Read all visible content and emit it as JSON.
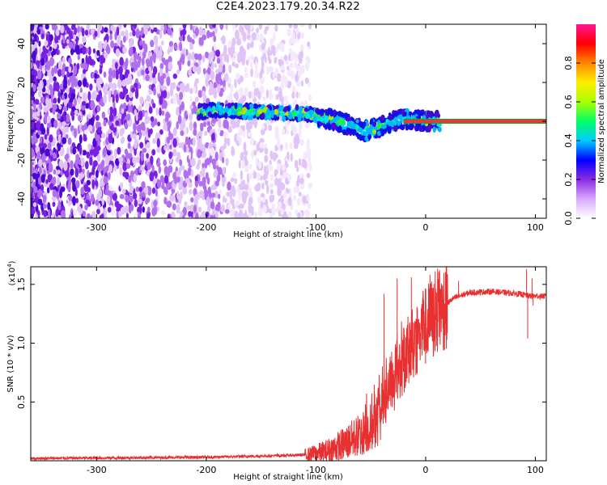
{
  "title": "C2E4.2023.179.20.34.R22",
  "colors": {
    "snr_line": "#e83030",
    "frame": "#000000",
    "reference_line_fill": "#e03c3c",
    "reference_line_edge": "#18a018",
    "scatter_palette": [
      "#f4e8fc",
      "#e0c4f8",
      "#b070ee",
      "#7a20e0",
      "#4a08d0",
      "#1010e8",
      "#00b8ff",
      "#00e8d8",
      "#20f040",
      "#b0e010"
    ]
  },
  "chart_data": [
    {
      "type": "heatmap",
      "xlabel": "Height of straight line (km)",
      "ylabel": "Frequency (Hz)",
      "xlim": [
        -360,
        110
      ],
      "ylim": [
        -50,
        50
      ],
      "x_ticks": [
        -300,
        -200,
        -100,
        0,
        100
      ],
      "y_ticks": [
        -40,
        -20,
        0,
        20,
        40
      ],
      "colorbar": {
        "label": "Normalized spectral amplitude",
        "range": [
          0.0,
          1.0
        ],
        "ticks": [
          "0.0",
          "0.2",
          "0.4",
          "0.6",
          "0.8"
        ],
        "tick_values": [
          0.0,
          0.2,
          0.4,
          0.6,
          0.8
        ],
        "colors": [
          "#ffffff",
          "#d8a8ff",
          "#8a2be2",
          "#0000ff",
          "#00ccff",
          "#00ff66",
          "#aaff00",
          "#ffee00",
          "#ff8800",
          "#ff0000",
          "#ff1493"
        ]
      },
      "signal_track": [
        [
          -205,
          5
        ],
        [
          -190,
          6
        ],
        [
          -170,
          5
        ],
        [
          -150,
          5
        ],
        [
          -130,
          4
        ],
        [
          -110,
          4
        ],
        [
          -95,
          2
        ],
        [
          -80,
          0
        ],
        [
          -65,
          -3
        ],
        [
          -55,
          -5
        ],
        [
          -45,
          -4
        ],
        [
          -35,
          -1
        ],
        [
          -25,
          1
        ],
        [
          -15,
          1
        ],
        [
          0,
          0
        ],
        [
          20,
          0
        ],
        [
          60,
          0
        ],
        [
          110,
          0
        ]
      ],
      "reference_line_y": 0,
      "reference_line_from_x": -20
    },
    {
      "type": "line",
      "xlabel": "Height of straight line (km)",
      "ylabel": "SNR (10 * v/v)",
      "multiplier": "(x10",
      "multiplier_exp": "4",
      "multiplier_close": ")",
      "xlim": [
        -360,
        110
      ],
      "ylim": [
        0,
        1.65
      ],
      "x_ticks": [
        -300,
        -200,
        -100,
        0,
        100
      ],
      "y_ticks": [
        0.5,
        1.0,
        1.5
      ],
      "y_tick_labels": [
        "0.5",
        "1.0",
        "1.5"
      ],
      "envelope": [
        [
          -360,
          0.02
        ],
        [
          -200,
          0.03
        ],
        [
          -150,
          0.04
        ],
        [
          -110,
          0.05
        ],
        [
          -90,
          0.08
        ],
        [
          -75,
          0.14
        ],
        [
          -60,
          0.22
        ],
        [
          -45,
          0.32
        ],
        [
          -35,
          0.55
        ],
        [
          -25,
          0.75
        ],
        [
          -15,
          0.95
        ],
        [
          -5,
          1.08
        ],
        [
          5,
          1.2
        ],
        [
          15,
          1.3
        ],
        [
          25,
          1.38
        ],
        [
          40,
          1.43
        ],
        [
          60,
          1.44
        ],
        [
          85,
          1.42
        ],
        [
          95,
          1.4
        ],
        [
          110,
          1.4
        ]
      ],
      "spikes": [
        [
          -38,
          1.42
        ],
        [
          -26,
          1.55
        ],
        [
          -13,
          1.56
        ],
        [
          4,
          1.58
        ],
        [
          30,
          1.53
        ],
        [
          92,
          1.63
        ],
        [
          93,
          1.04
        ],
        [
          97,
          1.55
        ],
        [
          98,
          1.32
        ]
      ]
    }
  ]
}
